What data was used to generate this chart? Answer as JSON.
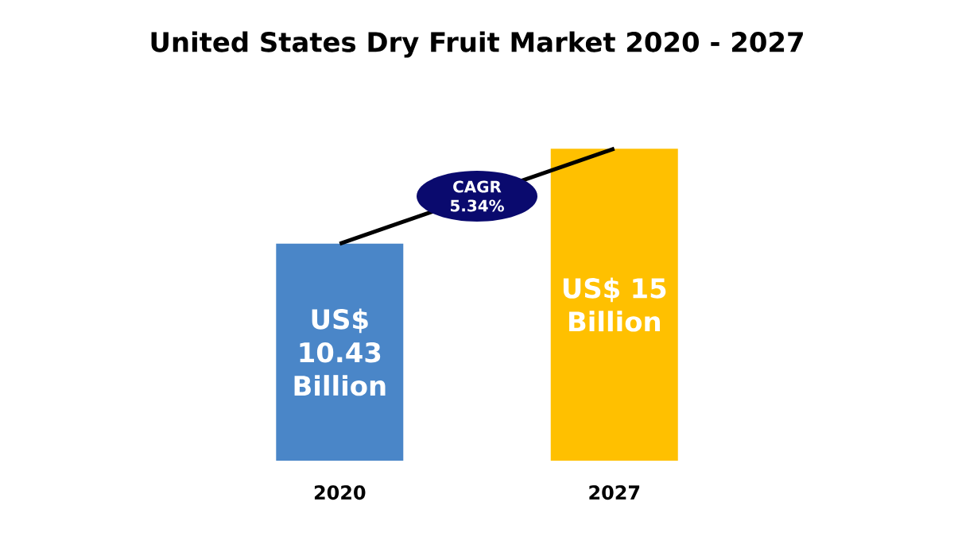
{
  "chart_data": {
    "type": "bar",
    "title": "United States Dry Fruit Market 2020 - 2027",
    "categories": [
      "2020",
      "2027"
    ],
    "values": [
      10.43,
      15
    ],
    "colors": [
      "#4a86c8",
      "#ffc000"
    ],
    "value_labels": [
      "US$ 10.43 Billion",
      "US$ 15 Billion"
    ],
    "annotations": [
      "CAGR 5.34%"
    ]
  }
}
